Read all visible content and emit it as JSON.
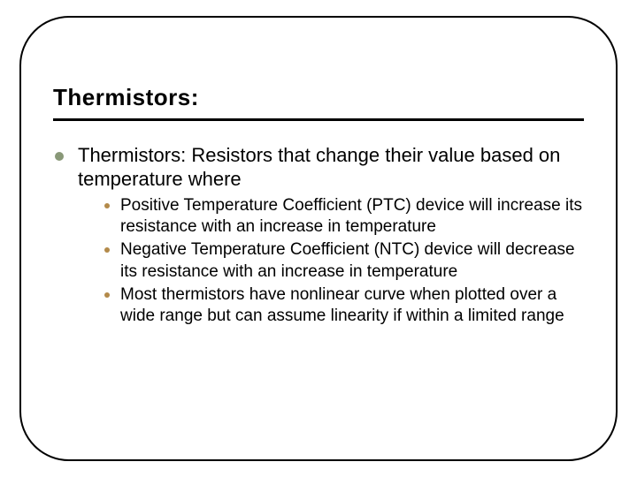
{
  "slide": {
    "title": "Thermistors:",
    "title_fontsize": 26,
    "title_color": "#000000",
    "underline_color": "#000000",
    "underline_thickness": 3,
    "frame_border_color": "#000000",
    "frame_border_width": 2.5,
    "frame_border_radius": 56,
    "background_color": "#ffffff",
    "bullets": {
      "level1": {
        "color": "#899878",
        "diameter": 10,
        "text_fontsize": 22,
        "text_color": "#000000",
        "items": [
          {
            "text": "Thermistors: Resistors that change their value based on temperature where",
            "sub": [
              "Positive Temperature Coefficient (PTC) device will increase its resistance with an increase in temperature",
              "Negative Temperature Coefficient (NTC) device will decrease its resistance with an increase in temperature",
              "Most thermistors have nonlinear curve when plotted over a wide range but can assume linearity if within a limited range"
            ]
          }
        ]
      },
      "level2": {
        "color": "#b38a4a",
        "diameter": 6,
        "text_fontsize": 19,
        "text_color": "#000000"
      }
    }
  }
}
